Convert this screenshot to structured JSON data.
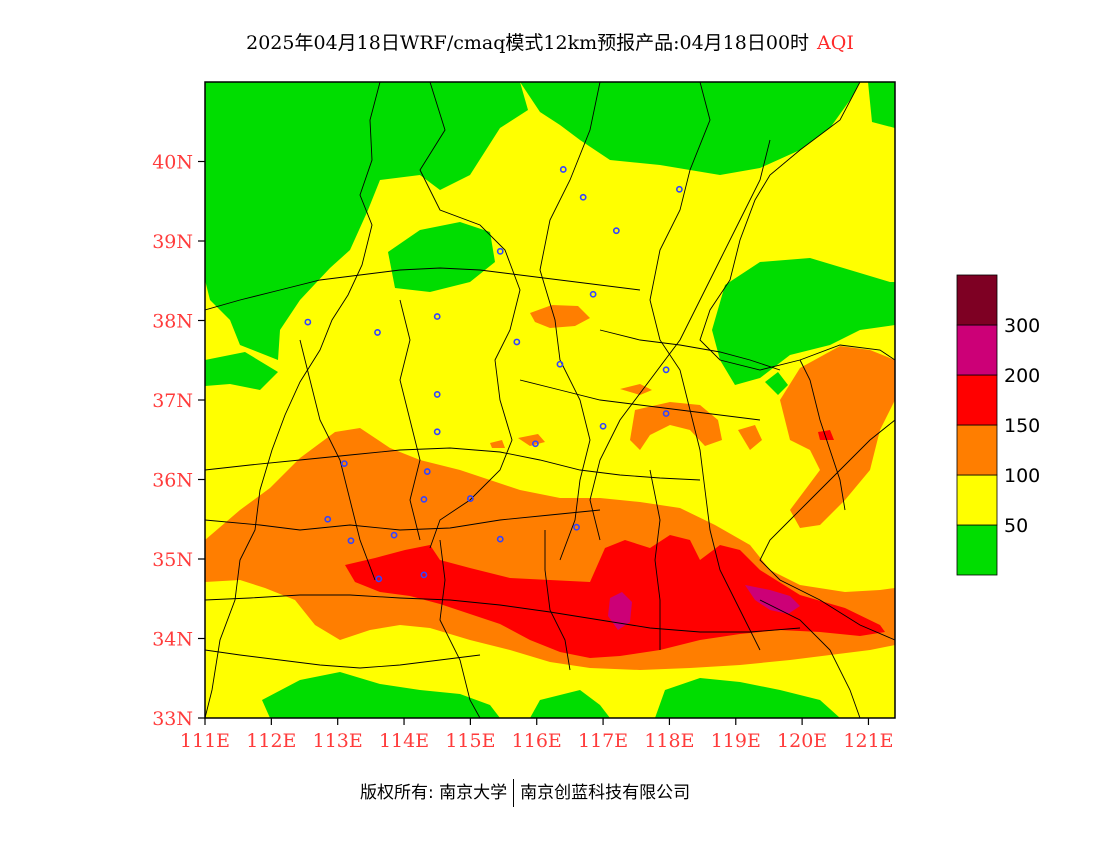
{
  "title": {
    "main": "2025年04月18日WRF/cmaq模式12km预报产品:04月18日00时",
    "pollutant": "AQI"
  },
  "axes": {
    "lat_ticks": [
      "33N",
      "34N",
      "35N",
      "36N",
      "37N",
      "38N",
      "39N",
      "40N"
    ],
    "lon_ticks": [
      "111E",
      "112E",
      "113E",
      "114E",
      "115E",
      "116E",
      "117E",
      "118E",
      "119E",
      "120E",
      "121E"
    ],
    "lat_range": [
      33,
      41
    ],
    "lon_range": [
      111,
      121.4
    ]
  },
  "legend": {
    "levels": [
      {
        "color": "#00dd00"
      },
      {
        "color": "#ffff00",
        "label": "50"
      },
      {
        "color": "#ff7e00",
        "label": "100"
      },
      {
        "color": "#ff0000",
        "label": "150"
      },
      {
        "color": "#cc0077",
        "label": "200"
      },
      {
        "color": "#7e0023",
        "label": "300"
      }
    ]
  },
  "colors": {
    "good": "#00dd00",
    "moderate": "#ffff00",
    "sensitive": "#ff7e00",
    "unhealthy": "#ff0000",
    "very_unhealthy": "#cc0077",
    "hazardous": "#7e0023",
    "boundary": "#000000",
    "station": "#3344ff"
  },
  "stations": [
    {
      "lon": 116.4,
      "lat": 39.9
    },
    {
      "lon": 116.7,
      "lat": 39.55
    },
    {
      "lon": 118.15,
      "lat": 39.65
    },
    {
      "lon": 117.2,
      "lat": 39.13
    },
    {
      "lon": 115.45,
      "lat": 38.87
    },
    {
      "lon": 116.85,
      "lat": 38.33
    },
    {
      "lon": 112.55,
      "lat": 37.98
    },
    {
      "lon": 113.6,
      "lat": 37.85
    },
    {
      "lon": 114.5,
      "lat": 38.05
    },
    {
      "lon": 115.7,
      "lat": 37.73
    },
    {
      "lon": 116.35,
      "lat": 37.45
    },
    {
      "lon": 117.95,
      "lat": 37.38
    },
    {
      "lon": 114.5,
      "lat": 37.07
    },
    {
      "lon": 117.0,
      "lat": 36.67
    },
    {
      "lon": 117.95,
      "lat": 36.83
    },
    {
      "lon": 114.5,
      "lat": 36.6
    },
    {
      "lon": 115.98,
      "lat": 36.45
    },
    {
      "lon": 113.1,
      "lat": 36.2
    },
    {
      "lon": 114.35,
      "lat": 36.1
    },
    {
      "lon": 114.3,
      "lat": 35.75
    },
    {
      "lon": 115.0,
      "lat": 35.76
    },
    {
      "lon": 112.85,
      "lat": 35.5
    },
    {
      "lon": 113.2,
      "lat": 35.23
    },
    {
      "lon": 113.85,
      "lat": 35.3
    },
    {
      "lon": 115.45,
      "lat": 35.25
    },
    {
      "lon": 116.6,
      "lat": 35.4
    },
    {
      "lon": 114.3,
      "lat": 34.8
    },
    {
      "lon": 113.62,
      "lat": 34.75
    }
  ],
  "copyright": {
    "left": "版权所有: 南京大学",
    "right": "南京创蓝科技有限公司"
  }
}
